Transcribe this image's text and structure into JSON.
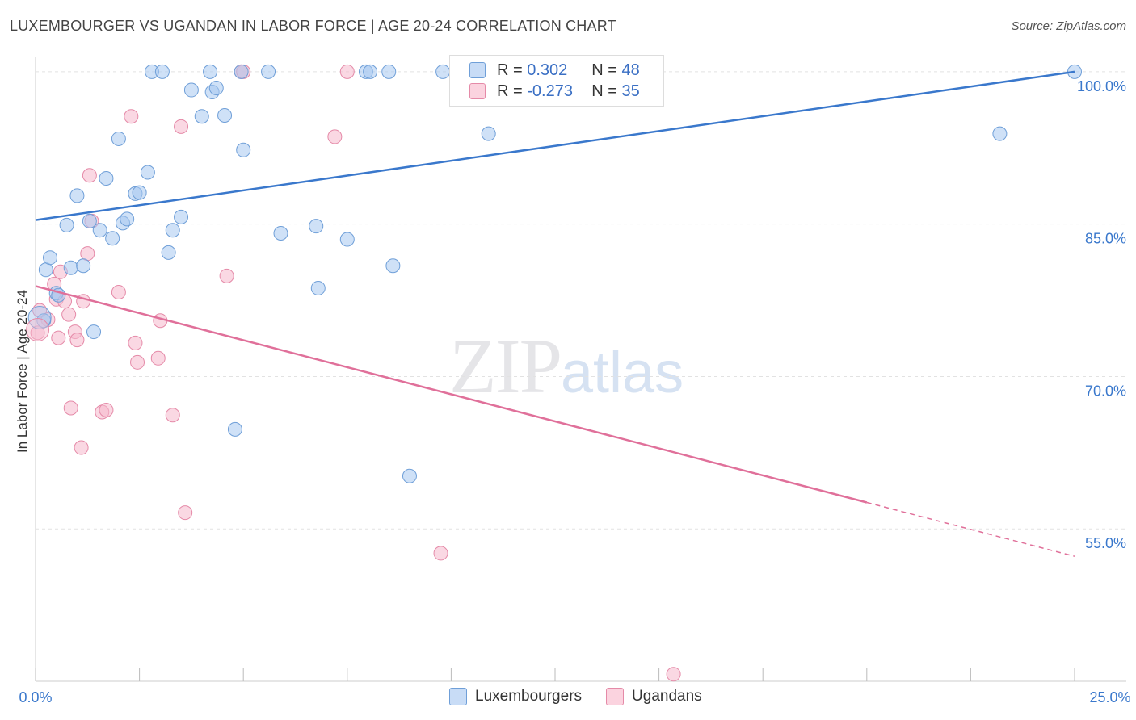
{
  "title": "LUXEMBOURGER VS UGANDAN IN LABOR FORCE | AGE 20-24 CORRELATION CHART",
  "source": "Source: ZipAtlas.com",
  "watermark": {
    "zip": "ZIP",
    "atlas": "atlas"
  },
  "legend": {
    "rows": [
      {
        "r_label": "R = ",
        "r_value": "0.302",
        "n_label": "N = ",
        "n_value": "48",
        "color": "#a8c8f0"
      },
      {
        "r_label": "R = ",
        "r_value": "-0.273",
        "n_label": "N = ",
        "n_value": "35",
        "color": "#f6b8cc"
      }
    ]
  },
  "bottom_legend": [
    "Luxembourgers",
    "Ugandans"
  ],
  "chart_data": {
    "type": "scatter",
    "title": "LUXEMBOURGER VS UGANDAN IN LABOR FORCE | AGE 20-24 CORRELATION CHART",
    "xlabel": "",
    "ylabel": "In Labor Force | Age 20-24",
    "xlim": [
      0,
      25
    ],
    "ylim": [
      40,
      101.5
    ],
    "x_tick_labels": [
      "0.0%",
      "25.0%"
    ],
    "y_ticks": [
      55,
      70,
      85,
      100
    ],
    "y_tick_labels": [
      "55.0%",
      "70.0%",
      "85.0%",
      "100.0%"
    ],
    "grid": true,
    "colors": {
      "lux_fill": "#a8c8f0",
      "lux_stroke": "#6f9fd8",
      "lux_line": "#3a78cc",
      "uga_fill": "#f6b8cc",
      "uga_stroke": "#e58aa8",
      "uga_line": "#e0709a"
    },
    "series": [
      {
        "name": "Luxembourgers",
        "r": 0.302,
        "n": 48,
        "trend": {
          "x0": 0,
          "y0": 85.4,
          "x1": 25,
          "y1": 100.0
        },
        "points": [
          [
            0.2,
            75.5
          ],
          [
            0.25,
            80.5
          ],
          [
            0.35,
            81.7
          ],
          [
            0.5,
            78.2
          ],
          [
            0.55,
            78.0
          ],
          [
            0.75,
            84.9
          ],
          [
            0.85,
            80.7
          ],
          [
            1.0,
            87.8
          ],
          [
            1.15,
            80.9
          ],
          [
            1.3,
            85.3
          ],
          [
            1.4,
            74.4
          ],
          [
            1.55,
            84.4
          ],
          [
            1.7,
            89.5
          ],
          [
            1.85,
            83.6
          ],
          [
            2.0,
            93.4
          ],
          [
            2.1,
            85.1
          ],
          [
            2.2,
            85.5
          ],
          [
            2.4,
            88.0
          ],
          [
            2.5,
            88.1
          ],
          [
            2.7,
            90.1
          ],
          [
            2.8,
            100.0
          ],
          [
            3.05,
            100.0
          ],
          [
            3.2,
            82.2
          ],
          [
            3.3,
            84.4
          ],
          [
            3.5,
            85.7
          ],
          [
            3.75,
            98.2
          ],
          [
            4.0,
            95.6
          ],
          [
            4.2,
            100.0
          ],
          [
            4.25,
            98.0
          ],
          [
            4.35,
            98.4
          ],
          [
            4.55,
            95.7
          ],
          [
            4.8,
            64.8
          ],
          [
            4.95,
            100.0
          ],
          [
            5.0,
            92.3
          ],
          [
            5.6,
            100.0
          ],
          [
            5.9,
            84.1
          ],
          [
            6.75,
            84.8
          ],
          [
            6.8,
            78.7
          ],
          [
            7.5,
            83.5
          ],
          [
            7.95,
            100.0
          ],
          [
            8.05,
            100.0
          ],
          [
            8.5,
            100.0
          ],
          [
            8.6,
            80.9
          ],
          [
            9.0,
            60.2
          ],
          [
            9.8,
            100.0
          ],
          [
            10.9,
            93.9
          ],
          [
            23.2,
            93.9
          ],
          [
            25.0,
            100.0
          ]
        ]
      },
      {
        "name": "Ugandans",
        "r": -0.273,
        "n": 35,
        "trend": {
          "x0": 0,
          "y0": 78.9,
          "x1": 20.0,
          "y1": 57.6,
          "dash_to_x": 25,
          "dash_to_y": 52.3
        },
        "points": [
          [
            0.05,
            74.3
          ],
          [
            0.1,
            76.5
          ],
          [
            0.3,
            75.6
          ],
          [
            0.45,
            79.1
          ],
          [
            0.5,
            77.6
          ],
          [
            0.55,
            73.8
          ],
          [
            0.6,
            80.3
          ],
          [
            0.7,
            77.4
          ],
          [
            0.8,
            76.1
          ],
          [
            0.85,
            66.9
          ],
          [
            0.95,
            74.4
          ],
          [
            1.0,
            73.6
          ],
          [
            1.1,
            63.0
          ],
          [
            1.15,
            77.4
          ],
          [
            1.25,
            82.1
          ],
          [
            1.3,
            89.8
          ],
          [
            1.35,
            85.3
          ],
          [
            1.6,
            66.5
          ],
          [
            1.7,
            66.7
          ],
          [
            2.0,
            78.3
          ],
          [
            2.3,
            95.6
          ],
          [
            2.4,
            73.3
          ],
          [
            2.45,
            71.4
          ],
          [
            2.95,
            71.8
          ],
          [
            3.0,
            75.5
          ],
          [
            3.3,
            66.2
          ],
          [
            3.5,
            94.6
          ],
          [
            3.6,
            56.6
          ],
          [
            4.6,
            79.9
          ],
          [
            4.95,
            100.0
          ],
          [
            5.0,
            100.0
          ],
          [
            7.2,
            93.6
          ],
          [
            7.5,
            100.0
          ],
          [
            9.75,
            52.6
          ],
          [
            15.35,
            40.7
          ]
        ]
      }
    ]
  }
}
